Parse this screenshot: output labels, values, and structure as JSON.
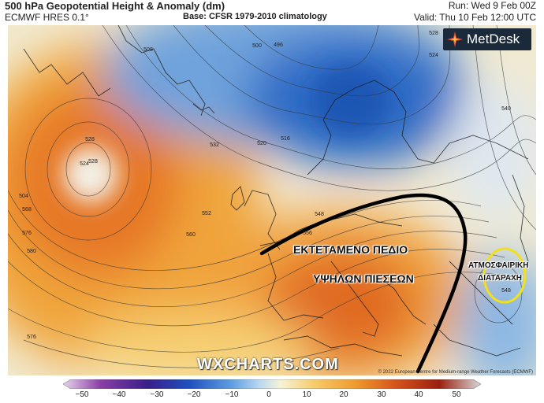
{
  "header": {
    "title": "500 hPa Geopotential Height & Anomaly (dm)",
    "model": "ECMWF HRES 0.1°",
    "base": "Base: CFSR 1979-2010 climatology",
    "run": "Run: Wed 9 Feb 00Z",
    "valid": "Valid: Thu 10 Feb 12:00 UTC"
  },
  "map": {
    "logo_text": "MetDesk",
    "watermark": "WXCHARTS.COM",
    "copyright": "© 2022 European Centre for Medium-range Weather Forecasts (ECMWF)",
    "contour_labels": [
      "528",
      "508",
      "500",
      "496",
      "528",
      "524",
      "540",
      "528",
      "524",
      "520",
      "516",
      "532",
      "504",
      "568",
      "576",
      "580",
      "576",
      "560",
      "552",
      "548",
      "556",
      "548"
    ],
    "annotations": {
      "ridge_line1": "ΕΚΤΕΤΑΜΕΝΟ ΠΕΔΙΟ",
      "ridge_line2": "ΥΨΗΛΩΝ ΠΙΕΣΕΩΝ",
      "disturbance_line1": "ΑΤΜΟΣΦΑΙΡΙΚΗ",
      "disturbance_line2": "ΔΙΑΤΑΡΑΧΗ"
    },
    "colors": {
      "strong_negative": "#1f5fbf",
      "negative": "#7fb3e6",
      "neutral": "#eef3f7",
      "positive": "#f5b543",
      "strong_positive": "#e0661f",
      "highlight_circle": "#f2e01a"
    }
  },
  "colorbar": {
    "ticks": [
      "−50",
      "−40",
      "−30",
      "−20",
      "−10",
      "0",
      "10",
      "20",
      "30",
      "40",
      "50"
    ],
    "stops": [
      "#e9d4ee",
      "#8a3fa6",
      "#3a1e8a",
      "#1f4fbf",
      "#5b9be0",
      "#b9d8f2",
      "#f7f3d6",
      "#f7cc6b",
      "#f09a2d",
      "#d4511a",
      "#9c1f10",
      "#d8d8d8"
    ]
  }
}
